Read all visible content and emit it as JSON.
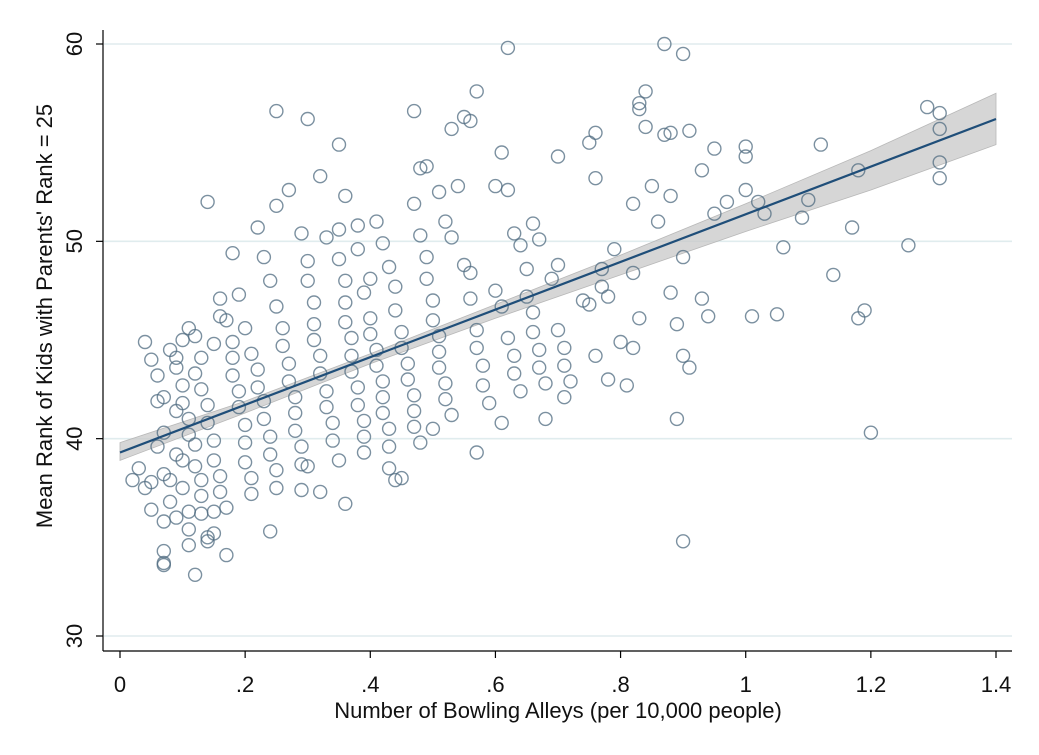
{
  "chart_data": {
    "type": "scatter",
    "title": "",
    "xlabel": "Number of Bowling Alleys (per 10,000 people)",
    "ylabel": "Mean Rank of Kids with Parents' Rank = 25",
    "xlim": [
      0,
      1.4
    ],
    "ylim": [
      30,
      60
    ],
    "x_ticks": [
      0,
      0.2,
      0.4,
      0.6,
      0.8,
      1,
      1.2,
      1.4
    ],
    "x_tick_labels": [
      "0",
      ".2",
      ".4",
      ".6",
      ".8",
      "1",
      "1.2",
      "1.4"
    ],
    "y_ticks": [
      30,
      40,
      50,
      60
    ],
    "y_tick_labels": [
      "30",
      "40",
      "50",
      "60"
    ],
    "grid": "horizontal",
    "legend": "none",
    "colors": {
      "points": "#4f6b80",
      "fit_line": "#1f4e79",
      "ci_band": "#c8c8c8",
      "grid": "#e0ecee"
    },
    "fit": {
      "type": "linear",
      "x": [
        0,
        1.4
      ],
      "y": [
        39.3,
        56.2
      ]
    },
    "ci_band": {
      "x": [
        0,
        0.2,
        0.4,
        0.6,
        0.8,
        1.0,
        1.2,
        1.4
      ],
      "lower": [
        38.9,
        41.3,
        43.8,
        46.1,
        48.3,
        50.5,
        52.6,
        54.9
      ],
      "upper": [
        39.8,
        41.9,
        44.3,
        46.8,
        49.3,
        51.9,
        54.6,
        57.5
      ]
    },
    "points": [
      [
        0.02,
        37.9
      ],
      [
        0.03,
        38.5
      ],
      [
        0.04,
        37.5
      ],
      [
        0.05,
        37.8
      ],
      [
        0.05,
        36.4
      ],
      [
        0.04,
        44.9
      ],
      [
        0.05,
        44.0
      ],
      [
        0.06,
        43.2
      ],
      [
        0.07,
        42.1
      ],
      [
        0.06,
        39.6
      ],
      [
        0.07,
        40.3
      ],
      [
        0.07,
        38.2
      ],
      [
        0.08,
        37.9
      ],
      [
        0.08,
        36.8
      ],
      [
        0.09,
        36.0
      ],
      [
        0.07,
        35.8
      ],
      [
        0.07,
        34.3
      ],
      [
        0.07,
        33.7
      ],
      [
        0.07,
        33.6
      ],
      [
        0.06,
        41.9
      ],
      [
        0.09,
        41.4
      ],
      [
        0.09,
        39.2
      ],
      [
        0.1,
        38.9
      ],
      [
        0.1,
        37.5
      ],
      [
        0.11,
        36.3
      ],
      [
        0.11,
        35.4
      ],
      [
        0.11,
        34.6
      ],
      [
        0.12,
        33.1
      ],
      [
        0.08,
        44.5
      ],
      [
        0.09,
        44.1
      ],
      [
        0.09,
        43.6
      ],
      [
        0.1,
        42.7
      ],
      [
        0.1,
        41.8
      ],
      [
        0.11,
        41.0
      ],
      [
        0.11,
        40.2
      ],
      [
        0.12,
        39.7
      ],
      [
        0.12,
        38.6
      ],
      [
        0.13,
        37.9
      ],
      [
        0.13,
        37.1
      ],
      [
        0.13,
        36.2
      ],
      [
        0.14,
        35.0
      ],
      [
        0.14,
        34.8
      ],
      [
        0.15,
        35.2
      ],
      [
        0.15,
        36.3
      ],
      [
        0.1,
        45.0
      ],
      [
        0.11,
        45.6
      ],
      [
        0.12,
        45.2
      ],
      [
        0.13,
        44.1
      ],
      [
        0.12,
        43.3
      ],
      [
        0.13,
        42.5
      ],
      [
        0.14,
        41.7
      ],
      [
        0.14,
        40.8
      ],
      [
        0.15,
        39.9
      ],
      [
        0.15,
        38.9
      ],
      [
        0.16,
        38.1
      ],
      [
        0.16,
        37.3
      ],
      [
        0.17,
        36.5
      ],
      [
        0.17,
        34.1
      ],
      [
        0.14,
        52.0
      ],
      [
        0.15,
        44.8
      ],
      [
        0.16,
        46.2
      ],
      [
        0.16,
        47.1
      ],
      [
        0.17,
        46.0
      ],
      [
        0.18,
        44.9
      ],
      [
        0.18,
        44.1
      ],
      [
        0.18,
        43.2
      ],
      [
        0.19,
        42.4
      ],
      [
        0.19,
        41.6
      ],
      [
        0.2,
        40.7
      ],
      [
        0.2,
        39.8
      ],
      [
        0.2,
        38.8
      ],
      [
        0.21,
        38.0
      ],
      [
        0.21,
        37.2
      ],
      [
        0.18,
        49.4
      ],
      [
        0.19,
        47.3
      ],
      [
        0.2,
        45.6
      ],
      [
        0.21,
        44.3
      ],
      [
        0.22,
        43.5
      ],
      [
        0.22,
        42.6
      ],
      [
        0.23,
        41.9
      ],
      [
        0.23,
        41.0
      ],
      [
        0.24,
        40.1
      ],
      [
        0.24,
        39.2
      ],
      [
        0.25,
        38.4
      ],
      [
        0.25,
        37.5
      ],
      [
        0.24,
        35.3
      ],
      [
        0.22,
        50.7
      ],
      [
        0.23,
        49.2
      ],
      [
        0.24,
        48.0
      ],
      [
        0.25,
        46.7
      ],
      [
        0.26,
        45.6
      ],
      [
        0.26,
        44.7
      ],
      [
        0.27,
        43.8
      ],
      [
        0.27,
        42.9
      ],
      [
        0.28,
        42.1
      ],
      [
        0.28,
        41.3
      ],
      [
        0.28,
        40.4
      ],
      [
        0.29,
        39.6
      ],
      [
        0.29,
        38.7
      ],
      [
        0.29,
        37.4
      ],
      [
        0.25,
        56.6
      ],
      [
        0.3,
        56.2
      ],
      [
        0.27,
        52.6
      ],
      [
        0.25,
        51.8
      ],
      [
        0.29,
        50.4
      ],
      [
        0.3,
        49.0
      ],
      [
        0.3,
        48.0
      ],
      [
        0.31,
        46.9
      ],
      [
        0.31,
        45.8
      ],
      [
        0.31,
        45.0
      ],
      [
        0.32,
        44.2
      ],
      [
        0.32,
        43.3
      ],
      [
        0.33,
        42.4
      ],
      [
        0.33,
        41.6
      ],
      [
        0.34,
        40.8
      ],
      [
        0.34,
        39.9
      ],
      [
        0.32,
        37.3
      ],
      [
        0.3,
        38.6
      ],
      [
        0.32,
        53.3
      ],
      [
        0.33,
        50.2
      ],
      [
        0.35,
        50.6
      ],
      [
        0.35,
        49.1
      ],
      [
        0.36,
        48.0
      ],
      [
        0.36,
        46.9
      ],
      [
        0.36,
        45.9
      ],
      [
        0.37,
        45.1
      ],
      [
        0.37,
        44.2
      ],
      [
        0.37,
        43.4
      ],
      [
        0.38,
        42.6
      ],
      [
        0.38,
        41.7
      ],
      [
        0.39,
        40.9
      ],
      [
        0.39,
        40.1
      ],
      [
        0.39,
        39.3
      ],
      [
        0.36,
        36.7
      ],
      [
        0.35,
        38.9
      ],
      [
        0.35,
        54.9
      ],
      [
        0.36,
        52.3
      ],
      [
        0.38,
        50.8
      ],
      [
        0.38,
        49.6
      ],
      [
        0.39,
        47.4
      ],
      [
        0.4,
        46.1
      ],
      [
        0.4,
        45.3
      ],
      [
        0.41,
        44.5
      ],
      [
        0.41,
        43.7
      ],
      [
        0.42,
        42.9
      ],
      [
        0.42,
        42.1
      ],
      [
        0.42,
        41.3
      ],
      [
        0.43,
        40.5
      ],
      [
        0.43,
        39.6
      ],
      [
        0.43,
        38.5
      ],
      [
        0.44,
        37.9
      ],
      [
        0.4,
        48.1
      ],
      [
        0.41,
        51.0
      ],
      [
        0.42,
        49.9
      ],
      [
        0.43,
        48.7
      ],
      [
        0.44,
        47.7
      ],
      [
        0.44,
        46.5
      ],
      [
        0.45,
        45.4
      ],
      [
        0.45,
        44.6
      ],
      [
        0.46,
        43.8
      ],
      [
        0.46,
        43.0
      ],
      [
        0.47,
        42.2
      ],
      [
        0.47,
        41.4
      ],
      [
        0.47,
        40.6
      ],
      [
        0.48,
        39.8
      ],
      [
        0.45,
        38.0
      ],
      [
        0.47,
        56.6
      ],
      [
        0.48,
        53.7
      ],
      [
        0.49,
        53.8
      ],
      [
        0.47,
        51.9
      ],
      [
        0.48,
        50.3
      ],
      [
        0.49,
        49.2
      ],
      [
        0.49,
        48.1
      ],
      [
        0.5,
        47.0
      ],
      [
        0.5,
        46.0
      ],
      [
        0.51,
        45.2
      ],
      [
        0.51,
        44.4
      ],
      [
        0.51,
        43.6
      ],
      [
        0.52,
        42.8
      ],
      [
        0.52,
        42.0
      ],
      [
        0.53,
        41.2
      ],
      [
        0.5,
        40.5
      ],
      [
        0.51,
        52.5
      ],
      [
        0.52,
        51.0
      ],
      [
        0.53,
        50.2
      ],
      [
        0.53,
        55.7
      ],
      [
        0.55,
        56.3
      ],
      [
        0.56,
        56.1
      ],
      [
        0.54,
        52.8
      ],
      [
        0.55,
        48.8
      ],
      [
        0.56,
        48.4
      ],
      [
        0.56,
        47.1
      ],
      [
        0.57,
        45.5
      ],
      [
        0.57,
        44.6
      ],
      [
        0.58,
        43.7
      ],
      [
        0.58,
        42.7
      ],
      [
        0.59,
        41.8
      ],
      [
        0.57,
        39.3
      ],
      [
        0.57,
        57.6
      ],
      [
        0.6,
        52.8
      ],
      [
        0.61,
        54.5
      ],
      [
        0.62,
        52.6
      ],
      [
        0.62,
        59.8
      ],
      [
        0.6,
        47.5
      ],
      [
        0.61,
        46.7
      ],
      [
        0.62,
        45.1
      ],
      [
        0.63,
        44.2
      ],
      [
        0.63,
        43.3
      ],
      [
        0.64,
        42.4
      ],
      [
        0.61,
        40.8
      ],
      [
        0.63,
        50.4
      ],
      [
        0.64,
        49.8
      ],
      [
        0.65,
        48.6
      ],
      [
        0.65,
        47.2
      ],
      [
        0.66,
        46.4
      ],
      [
        0.66,
        45.4
      ],
      [
        0.67,
        44.5
      ],
      [
        0.67,
        43.6
      ],
      [
        0.68,
        42.8
      ],
      [
        0.68,
        41.0
      ],
      [
        0.66,
        50.9
      ],
      [
        0.67,
        50.1
      ],
      [
        0.69,
        48.1
      ],
      [
        0.7,
        48.8
      ],
      [
        0.7,
        45.5
      ],
      [
        0.71,
        44.6
      ],
      [
        0.71,
        43.7
      ],
      [
        0.72,
        42.9
      ],
      [
        0.71,
        42.1
      ],
      [
        0.7,
        54.3
      ],
      [
        0.74,
        47.0
      ],
      [
        0.75,
        46.8
      ],
      [
        0.76,
        44.2
      ],
      [
        0.75,
        55.0
      ],
      [
        0.76,
        55.5
      ],
      [
        0.76,
        53.2
      ],
      [
        0.77,
        48.6
      ],
      [
        0.77,
        47.7
      ],
      [
        0.78,
        47.2
      ],
      [
        0.78,
        43.0
      ],
      [
        0.79,
        49.6
      ],
      [
        0.8,
        44.9
      ],
      [
        0.81,
        42.7
      ],
      [
        0.82,
        51.9
      ],
      [
        0.82,
        48.4
      ],
      [
        0.83,
        46.1
      ],
      [
        0.82,
        44.6
      ],
      [
        0.83,
        57.0
      ],
      [
        0.84,
        57.6
      ],
      [
        0.83,
        56.7
      ],
      [
        0.84,
        55.8
      ],
      [
        0.85,
        52.8
      ],
      [
        0.86,
        51.0
      ],
      [
        0.87,
        55.4
      ],
      [
        0.87,
        60.0
      ],
      [
        0.88,
        55.5
      ],
      [
        0.88,
        52.3
      ],
      [
        0.88,
        47.4
      ],
      [
        0.89,
        45.8
      ],
      [
        0.89,
        41.0
      ],
      [
        0.9,
        59.5
      ],
      [
        0.9,
        49.2
      ],
      [
        0.9,
        44.2
      ],
      [
        0.9,
        34.8
      ],
      [
        0.91,
        43.6
      ],
      [
        0.91,
        55.6
      ],
      [
        0.93,
        53.6
      ],
      [
        0.93,
        47.1
      ],
      [
        0.94,
        46.2
      ],
      [
        0.95,
        51.4
      ],
      [
        0.95,
        54.7
      ],
      [
        0.97,
        52.0
      ],
      [
        1.0,
        54.8
      ],
      [
        1.0,
        54.3
      ],
      [
        1.0,
        52.6
      ],
      [
        1.02,
        52.0
      ],
      [
        1.01,
        46.2
      ],
      [
        1.03,
        51.4
      ],
      [
        1.05,
        46.3
      ],
      [
        1.06,
        49.7
      ],
      [
        1.09,
        51.2
      ],
      [
        1.1,
        52.1
      ],
      [
        1.12,
        54.9
      ],
      [
        1.14,
        48.3
      ],
      [
        1.18,
        53.6
      ],
      [
        1.17,
        50.7
      ],
      [
        1.18,
        46.1
      ],
      [
        1.19,
        46.5
      ],
      [
        1.2,
        40.3
      ],
      [
        1.26,
        49.8
      ],
      [
        1.29,
        56.8
      ],
      [
        1.31,
        56.5
      ],
      [
        1.31,
        55.7
      ],
      [
        1.31,
        54.0
      ],
      [
        1.31,
        53.2
      ]
    ]
  }
}
